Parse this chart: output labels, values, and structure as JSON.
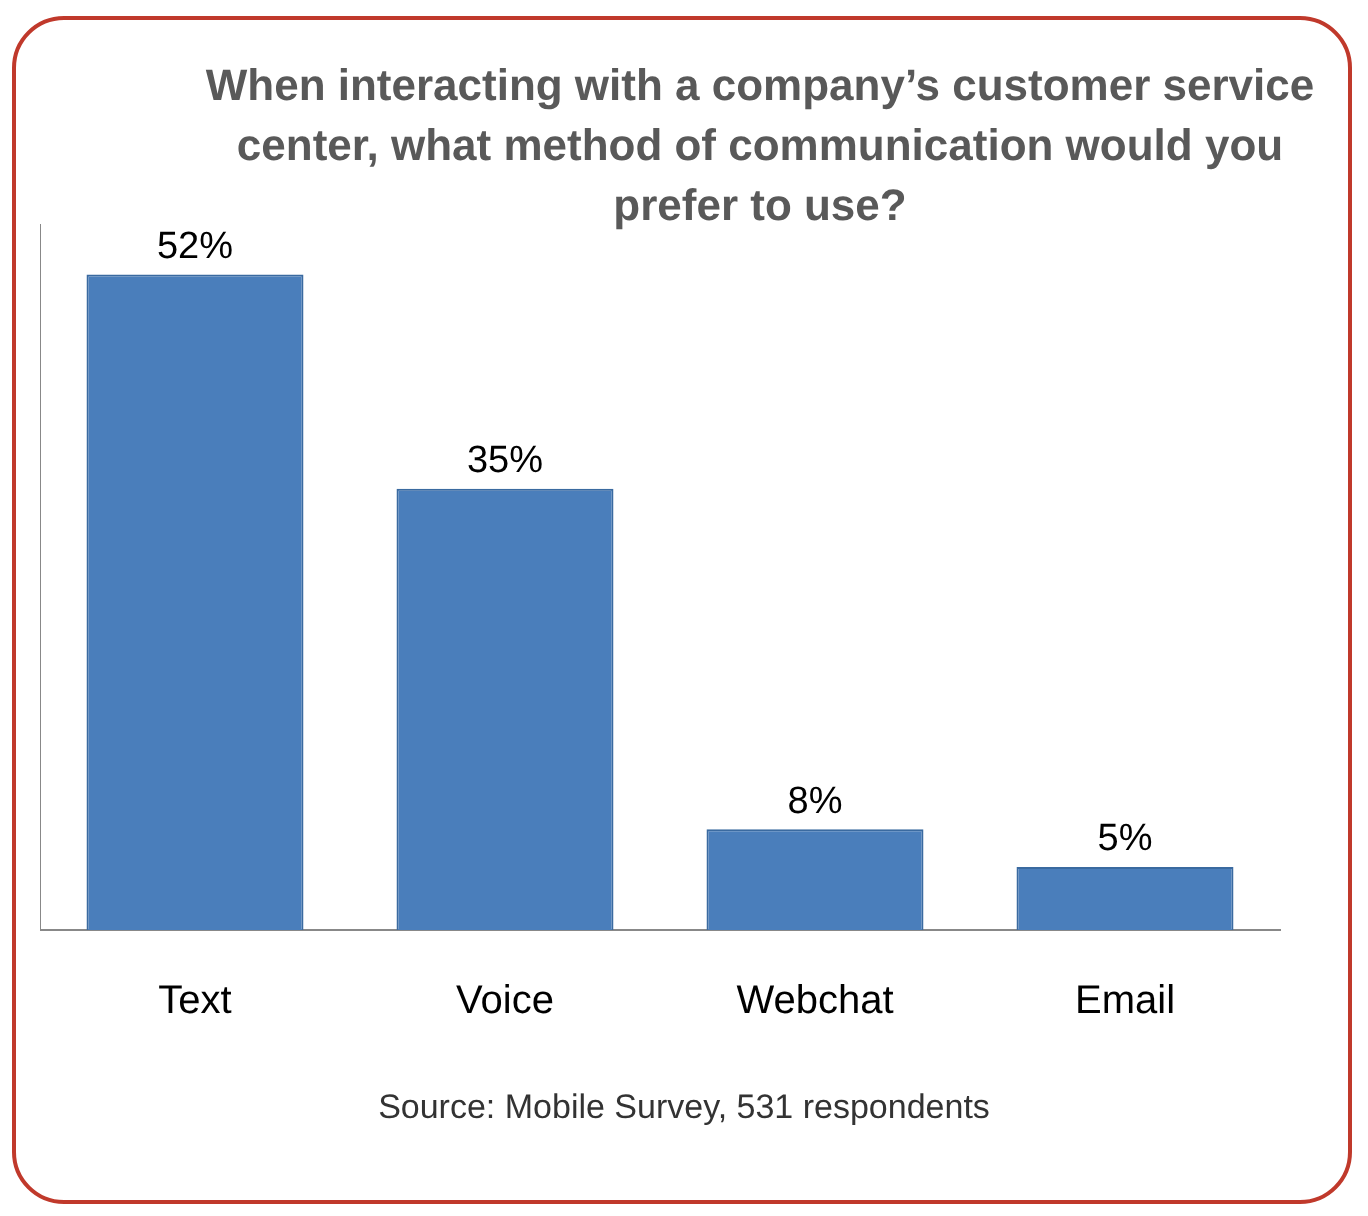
{
  "chart_data": {
    "type": "bar",
    "title": "When interacting with a company’s customer service center, what method of communication would you prefer to use?",
    "categories": [
      "Text",
      "Voice",
      "Webchat",
      "Email"
    ],
    "values": [
      52,
      35,
      8,
      5
    ],
    "value_labels": [
      "52%",
      "35%",
      "8%",
      "5%"
    ],
    "color": "#4a7ebb",
    "ylim": [
      0,
      56
    ],
    "tick_labels": "x",
    "grid": false,
    "legend": false,
    "annotations": [
      "Source: Mobile Survey, 531 respondents"
    ]
  }
}
